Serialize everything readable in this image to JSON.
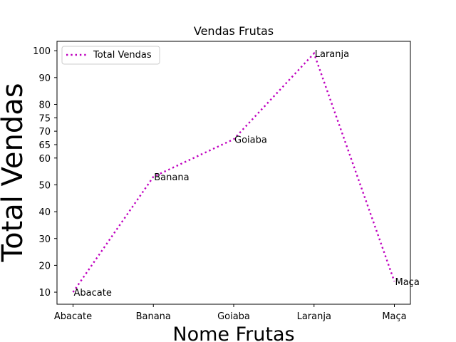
{
  "chart_data": {
    "type": "line",
    "title": "Vendas Frutas",
    "xlabel": "Nome Frutas",
    "ylabel": "Total Vendas",
    "categories": [
      "Abacate",
      "Banana",
      "Goiaba",
      "Laranja",
      "Maça"
    ],
    "series": [
      {
        "name": "Total Vendas",
        "values": [
          10,
          53,
          67,
          99,
          14
        ],
        "color": "#bf00bf",
        "linestyle": "dotted"
      }
    ],
    "point_labels": [
      "Abacate",
      "Banana",
      "Goiaba",
      "Laranja",
      "Maça"
    ],
    "yticks": [
      10,
      20,
      30,
      40,
      50,
      60,
      65,
      70,
      75,
      80,
      90,
      100
    ],
    "ylim": [
      5.5,
      103.5
    ],
    "legend_position": "upper-left",
    "grid": false
  }
}
